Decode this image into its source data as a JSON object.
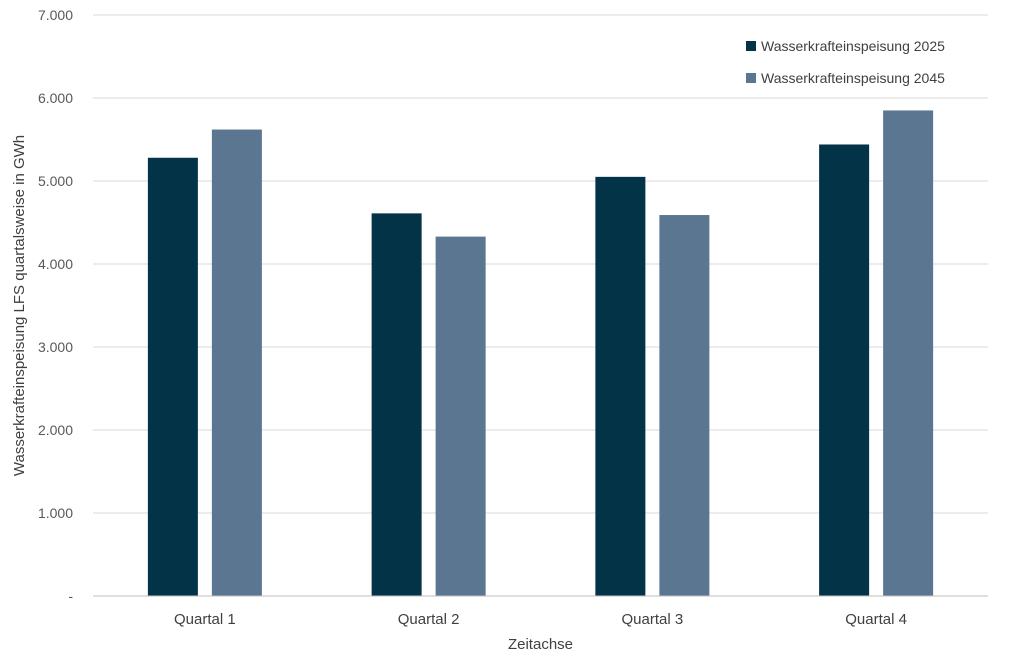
{
  "chart_data": {
    "type": "bar",
    "categories": [
      "Quartal 1",
      "Quartal 2",
      "Quartal 3",
      "Quartal 4"
    ],
    "series": [
      {
        "name": "Wasserkrafteinspeisung 2025",
        "color": "#023347",
        "values": [
          5280,
          4610,
          5050,
          5440
        ]
      },
      {
        "name": "Wasserkrafteinspeisung 2045",
        "color": "#5b7690",
        "values": [
          5620,
          4330,
          4590,
          5850
        ]
      }
    ],
    "xlabel": "Zeitachse",
    "ylabel": "Wasserkrafteinspeisung LFS quartalsweise in GWh",
    "ylim": [
      0,
      7000
    ],
    "yticks": [
      0,
      1000,
      2000,
      3000,
      4000,
      5000,
      6000,
      7000
    ],
    "ytick_labels": [
      "-",
      "1.000",
      "2.000",
      "3.000",
      "4.000",
      "5.000",
      "6.000",
      "7.000"
    ],
    "grid": true,
    "legend_position": "top-right"
  }
}
